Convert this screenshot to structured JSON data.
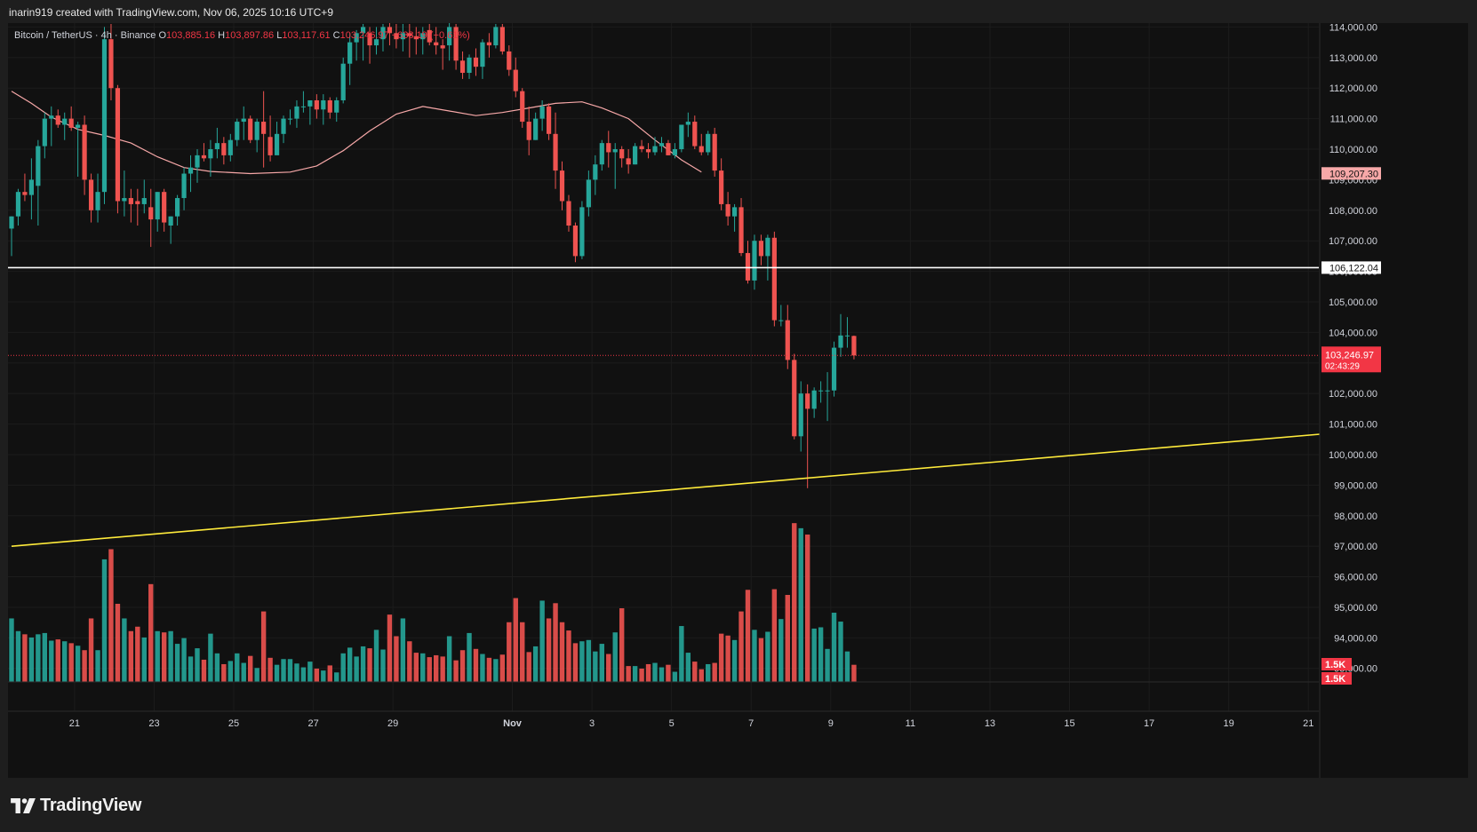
{
  "header": {
    "author_line": "inarin919 created with TradingView.com, Nov 06, 2025 10:16 UTC+9"
  },
  "legend": {
    "symbol": "Bitcoin / TetherUS · 4h · Binance",
    "o_label": "O",
    "o_value": "103,885.16",
    "h_label": "H",
    "h_value": "103,897.86",
    "l_label": "L",
    "l_value": "103,117.61",
    "c_label": "C",
    "c_value": "103,246.97",
    "change": "−638.19 (−0.61%)"
  },
  "footer": {
    "logo_text": "TradingView"
  },
  "colors": {
    "up": "#26a69a",
    "down": "#ef5350",
    "ma": "#f7a8a8",
    "support_line": "#ffeb3b",
    "resistance_line": "#ffffff",
    "background": "#111111",
    "grid": "#1c1c1c"
  },
  "chart_data": {
    "type": "candlestick",
    "timeframe": "4h",
    "price_axis": {
      "ylim": [
        92530,
        114030
      ],
      "ticks": [
        "93,000.00",
        "94,000.00",
        "95,000.00",
        "96,000.00",
        "97,000.00",
        "98,000.00",
        "99,000.00",
        "100,000.00",
        "101,000.00",
        "102,000.00",
        "103,000.00",
        "104,000.00",
        "105,000.00",
        "106,000.00",
        "107,000.00",
        "108,000.00",
        "109,000.00",
        "110,000.00",
        "111,000.00",
        "112,000.00",
        "113,000.00",
        "114,000.00"
      ]
    },
    "time_axis": {
      "labels": [
        {
          "label": "21",
          "idx": 9.5
        },
        {
          "label": "23",
          "idx": 21.5
        },
        {
          "label": "25",
          "idx": 33.5
        },
        {
          "label": "27",
          "idx": 45.5
        },
        {
          "label": "29",
          "idx": 57.5
        },
        {
          "label": "Nov",
          "idx": 75.5
        },
        {
          "label": "3",
          "idx": 87.5
        },
        {
          "label": "5",
          "idx": 99.5
        },
        {
          "label": "7",
          "idx": 111.5
        },
        {
          "label": "9",
          "idx": 123.5
        },
        {
          "label": "11",
          "idx": 135.5
        },
        {
          "label": "13",
          "idx": 147.5
        },
        {
          "label": "15",
          "idx": 159.5
        },
        {
          "label": "17",
          "idx": 171.5
        },
        {
          "label": "19",
          "idx": 183.5
        },
        {
          "label": "21",
          "idx": 195.5
        }
      ]
    },
    "price_labels": [
      {
        "value": 109207.3,
        "text": "109,207.30",
        "style": "ma"
      },
      {
        "value": 106122.04,
        "text": "106,122.04",
        "style": "line"
      },
      {
        "value": 103246.97,
        "text": "103,246.97",
        "subtext": "02:43:29",
        "style": "last"
      }
    ],
    "volume_labels": [
      "1.5K",
      "1.5K"
    ],
    "horizontal_line": 106122.04,
    "last_price": 103246.97,
    "trendline": {
      "from": {
        "idx": 0,
        "price": 97000
      },
      "to": {
        "idx": 199,
        "price": 100700
      }
    },
    "ma_series": [
      {
        "idx": 0,
        "v": 111900
      },
      {
        "idx": 3,
        "v": 111500
      },
      {
        "idx": 6,
        "v": 111050
      },
      {
        "idx": 10,
        "v": 110650
      },
      {
        "idx": 14,
        "v": 110450
      },
      {
        "idx": 18,
        "v": 110200
      },
      {
        "idx": 22,
        "v": 109750
      },
      {
        "idx": 26,
        "v": 109400
      },
      {
        "idx": 30,
        "v": 109270
      },
      {
        "idx": 36,
        "v": 109200
      },
      {
        "idx": 42,
        "v": 109250
      },
      {
        "idx": 46,
        "v": 109450
      },
      {
        "idx": 50,
        "v": 109950
      },
      {
        "idx": 54,
        "v": 110600
      },
      {
        "idx": 58,
        "v": 111150
      },
      {
        "idx": 62,
        "v": 111400
      },
      {
        "idx": 66,
        "v": 111250
      },
      {
        "idx": 70,
        "v": 111100
      },
      {
        "idx": 74,
        "v": 111200
      },
      {
        "idx": 78,
        "v": 111350
      },
      {
        "idx": 82,
        "v": 111500
      },
      {
        "idx": 86,
        "v": 111550
      },
      {
        "idx": 89,
        "v": 111350
      },
      {
        "idx": 93,
        "v": 111000
      },
      {
        "idx": 97,
        "v": 110300
      },
      {
        "idx": 101,
        "v": 109650
      },
      {
        "idx": 104,
        "v": 109250
      }
    ],
    "volume_max": 2600,
    "candles": [
      {
        "o": 107400,
        "h": 107800,
        "l": 106500,
        "c": 107800,
        "v": 1000
      },
      {
        "o": 107800,
        "h": 108700,
        "l": 107500,
        "c": 108600,
        "v": 800
      },
      {
        "o": 108600,
        "h": 109200,
        "l": 108300,
        "c": 108500,
        "v": 750
      },
      {
        "o": 108500,
        "h": 109700,
        "l": 107700,
        "c": 109000,
        "v": 700
      },
      {
        "o": 108800,
        "h": 110300,
        "l": 107500,
        "c": 110100,
        "v": 750
      },
      {
        "o": 110100,
        "h": 111200,
        "l": 109700,
        "c": 111000,
        "v": 770
      },
      {
        "o": 111000,
        "h": 111400,
        "l": 110100,
        "c": 111100,
        "v": 650
      },
      {
        "o": 111100,
        "h": 111300,
        "l": 110700,
        "c": 110800,
        "v": 670
      },
      {
        "o": 110800,
        "h": 111200,
        "l": 110300,
        "c": 111000,
        "v": 640
      },
      {
        "o": 111000,
        "h": 111400,
        "l": 110600,
        "c": 110700,
        "v": 610
      },
      {
        "o": 110700,
        "h": 110900,
        "l": 109100,
        "c": 110800,
        "v": 570
      },
      {
        "o": 110800,
        "h": 111100,
        "l": 108500,
        "c": 109000,
        "v": 500
      },
      {
        "o": 109000,
        "h": 109200,
        "l": 107600,
        "c": 108000,
        "v": 1000
      },
      {
        "o": 108000,
        "h": 109200,
        "l": 107600,
        "c": 108600,
        "v": 500
      },
      {
        "o": 108600,
        "h": 114000,
        "l": 108200,
        "c": 113600,
        "v": 1930
      },
      {
        "o": 113600,
        "h": 114100,
        "l": 111600,
        "c": 112000,
        "v": 2090
      },
      {
        "o": 112000,
        "h": 112100,
        "l": 107900,
        "c": 108300,
        "v": 1230
      },
      {
        "o": 108300,
        "h": 109300,
        "l": 107800,
        "c": 108400,
        "v": 1000
      },
      {
        "o": 108400,
        "h": 108700,
        "l": 107600,
        "c": 108200,
        "v": 800
      },
      {
        "o": 108300,
        "h": 108700,
        "l": 107500,
        "c": 108200,
        "v": 870
      },
      {
        "o": 108200,
        "h": 109000,
        "l": 107900,
        "c": 108400,
        "v": 700
      },
      {
        "o": 108100,
        "h": 108700,
        "l": 106800,
        "c": 107700,
        "v": 1540
      },
      {
        "o": 107700,
        "h": 108600,
        "l": 107300,
        "c": 108600,
        "v": 800
      },
      {
        "o": 108600,
        "h": 108700,
        "l": 107300,
        "c": 107600,
        "v": 780
      },
      {
        "o": 107500,
        "h": 107800,
        "l": 106900,
        "c": 107800,
        "v": 800
      },
      {
        "o": 107800,
        "h": 108500,
        "l": 107500,
        "c": 108400,
        "v": 600
      },
      {
        "o": 108400,
        "h": 109400,
        "l": 108000,
        "c": 109200,
        "v": 690
      },
      {
        "o": 109200,
        "h": 109800,
        "l": 108600,
        "c": 109400,
        "v": 400
      },
      {
        "o": 109400,
        "h": 110000,
        "l": 108900,
        "c": 109800,
        "v": 530
      },
      {
        "o": 109800,
        "h": 110200,
        "l": 109600,
        "c": 109700,
        "v": 350
      },
      {
        "o": 109700,
        "h": 110300,
        "l": 109100,
        "c": 110000,
        "v": 760
      },
      {
        "o": 110000,
        "h": 110700,
        "l": 109700,
        "c": 110200,
        "v": 450
      },
      {
        "o": 110200,
        "h": 110400,
        "l": 109500,
        "c": 109800,
        "v": 280
      },
      {
        "o": 109800,
        "h": 110500,
        "l": 109600,
        "c": 110300,
        "v": 330
      },
      {
        "o": 110300,
        "h": 111000,
        "l": 110100,
        "c": 110900,
        "v": 450
      },
      {
        "o": 110900,
        "h": 111400,
        "l": 110300,
        "c": 111000,
        "v": 300
      },
      {
        "o": 111000,
        "h": 111100,
        "l": 110200,
        "c": 110300,
        "v": 410
      },
      {
        "o": 110300,
        "h": 111000,
        "l": 109900,
        "c": 110900,
        "v": 220
      },
      {
        "o": 110900,
        "h": 111900,
        "l": 109400,
        "c": 110500,
        "v": 1110
      },
      {
        "o": 110400,
        "h": 111100,
        "l": 109600,
        "c": 109800,
        "v": 380
      },
      {
        "o": 109800,
        "h": 110900,
        "l": 109900,
        "c": 110500,
        "v": 270
      },
      {
        "o": 110500,
        "h": 111100,
        "l": 110200,
        "c": 111000,
        "v": 360
      },
      {
        "o": 111000,
        "h": 111300,
        "l": 110800,
        "c": 111000,
        "v": 360
      },
      {
        "o": 111000,
        "h": 111600,
        "l": 110700,
        "c": 111400,
        "v": 290
      },
      {
        "o": 111400,
        "h": 111900,
        "l": 111200,
        "c": 111400,
        "v": 230
      },
      {
        "o": 111400,
        "h": 111600,
        "l": 110800,
        "c": 111600,
        "v": 320
      },
      {
        "o": 111600,
        "h": 111800,
        "l": 111000,
        "c": 111300,
        "v": 210
      },
      {
        "o": 111300,
        "h": 111800,
        "l": 110800,
        "c": 111600,
        "v": 180
      },
      {
        "o": 111600,
        "h": 111700,
        "l": 111000,
        "c": 111200,
        "v": 260
      },
      {
        "o": 111200,
        "h": 111700,
        "l": 110900,
        "c": 111600,
        "v": 150
      },
      {
        "o": 111600,
        "h": 113000,
        "l": 111500,
        "c": 112800,
        "v": 450
      },
      {
        "o": 112800,
        "h": 113800,
        "l": 112100,
        "c": 113500,
        "v": 540
      },
      {
        "o": 113500,
        "h": 113900,
        "l": 112900,
        "c": 113800,
        "v": 400
      },
      {
        "o": 113800,
        "h": 114100,
        "l": 112900,
        "c": 114000,
        "v": 560
      },
      {
        "o": 113800,
        "h": 114000,
        "l": 112800,
        "c": 113400,
        "v": 530
      },
      {
        "o": 113400,
        "h": 114000,
        "l": 113100,
        "c": 113600,
        "v": 820
      },
      {
        "o": 113600,
        "h": 114100,
        "l": 113200,
        "c": 114000,
        "v": 510
      },
      {
        "o": 114000,
        "h": 114200,
        "l": 113400,
        "c": 113800,
        "v": 1060
      },
      {
        "o": 113800,
        "h": 114100,
        "l": 113300,
        "c": 113600,
        "v": 720
      },
      {
        "o": 113600,
        "h": 114100,
        "l": 113200,
        "c": 113800,
        "v": 1000
      },
      {
        "o": 113800,
        "h": 114100,
        "l": 113000,
        "c": 113700,
        "v": 640
      },
      {
        "o": 113700,
        "h": 114000,
        "l": 113100,
        "c": 113600,
        "v": 460
      },
      {
        "o": 113600,
        "h": 114000,
        "l": 113100,
        "c": 113800,
        "v": 450
      },
      {
        "o": 113900,
        "h": 114100,
        "l": 113400,
        "c": 113500,
        "v": 390
      },
      {
        "o": 113500,
        "h": 114000,
        "l": 113100,
        "c": 113400,
        "v": 420
      },
      {
        "o": 113400,
        "h": 113600,
        "l": 112600,
        "c": 113300,
        "v": 400
      },
      {
        "o": 113400,
        "h": 114300,
        "l": 112900,
        "c": 114000,
        "v": 720
      },
      {
        "o": 114000,
        "h": 114100,
        "l": 112600,
        "c": 112900,
        "v": 340
      },
      {
        "o": 112900,
        "h": 113200,
        "l": 112300,
        "c": 112500,
        "v": 500
      },
      {
        "o": 112500,
        "h": 113100,
        "l": 112300,
        "c": 113000,
        "v": 770
      },
      {
        "o": 113000,
        "h": 113300,
        "l": 112400,
        "c": 112700,
        "v": 520
      },
      {
        "o": 112700,
        "h": 113600,
        "l": 112300,
        "c": 113500,
        "v": 440
      },
      {
        "o": 113500,
        "h": 113800,
        "l": 113000,
        "c": 113400,
        "v": 380
      },
      {
        "o": 113400,
        "h": 114100,
        "l": 113300,
        "c": 114000,
        "v": 360
      },
      {
        "o": 114000,
        "h": 114100,
        "l": 113100,
        "c": 113200,
        "v": 430
      },
      {
        "o": 113200,
        "h": 113400,
        "l": 112400,
        "c": 112600,
        "v": 940
      },
      {
        "o": 112600,
        "h": 113000,
        "l": 111700,
        "c": 111900,
        "v": 1320
      },
      {
        "o": 111900,
        "h": 112000,
        "l": 110700,
        "c": 110900,
        "v": 940
      },
      {
        "o": 110900,
        "h": 111400,
        "l": 109800,
        "c": 110300,
        "v": 470
      },
      {
        "o": 110300,
        "h": 111200,
        "l": 110300,
        "c": 111000,
        "v": 560
      },
      {
        "o": 111000,
        "h": 111600,
        "l": 110600,
        "c": 111400,
        "v": 1280
      },
      {
        "o": 111400,
        "h": 111500,
        "l": 110300,
        "c": 110500,
        "v": 1000
      },
      {
        "o": 110500,
        "h": 111200,
        "l": 108700,
        "c": 109300,
        "v": 1240
      },
      {
        "o": 109300,
        "h": 109600,
        "l": 108000,
        "c": 108300,
        "v": 940
      },
      {
        "o": 108300,
        "h": 108500,
        "l": 107300,
        "c": 107500,
        "v": 810
      },
      {
        "o": 107500,
        "h": 107600,
        "l": 106300,
        "c": 106500,
        "v": 610
      },
      {
        "o": 106500,
        "h": 108300,
        "l": 106400,
        "c": 108100,
        "v": 640
      },
      {
        "o": 108100,
        "h": 109300,
        "l": 107800,
        "c": 109000,
        "v": 660
      },
      {
        "o": 109000,
        "h": 109800,
        "l": 108500,
        "c": 109500,
        "v": 480
      },
      {
        "o": 109500,
        "h": 110300,
        "l": 109300,
        "c": 110200,
        "v": 600
      },
      {
        "o": 110200,
        "h": 110600,
        "l": 109400,
        "c": 109900,
        "v": 440
      },
      {
        "o": 109900,
        "h": 110200,
        "l": 108700,
        "c": 110000,
        "v": 780
      },
      {
        "o": 110000,
        "h": 110100,
        "l": 109400,
        "c": 109700,
        "v": 1160
      },
      {
        "o": 109700,
        "h": 110000,
        "l": 109200,
        "c": 109500,
        "v": 250
      },
      {
        "o": 109500,
        "h": 110200,
        "l": 109500,
        "c": 110100,
        "v": 250
      },
      {
        "o": 110100,
        "h": 110300,
        "l": 109900,
        "c": 110000,
        "v": 210
      },
      {
        "o": 110000,
        "h": 110200,
        "l": 109700,
        "c": 109900,
        "v": 280
      },
      {
        "o": 109900,
        "h": 110400,
        "l": 109800,
        "c": 110100,
        "v": 300
      },
      {
        "o": 110100,
        "h": 110400,
        "l": 109900,
        "c": 110200,
        "v": 230
      },
      {
        "o": 110200,
        "h": 110300,
        "l": 109800,
        "c": 109800,
        "v": 270
      },
      {
        "o": 109800,
        "h": 110200,
        "l": 109700,
        "c": 110000,
        "v": 160
      },
      {
        "o": 110000,
        "h": 110800,
        "l": 109900,
        "c": 110800,
        "v": 880
      },
      {
        "o": 110800,
        "h": 111200,
        "l": 110400,
        "c": 110900,
        "v": 460
      },
      {
        "o": 110900,
        "h": 111100,
        "l": 110000,
        "c": 110100,
        "v": 320
      },
      {
        "o": 110100,
        "h": 110500,
        "l": 109800,
        "c": 109900,
        "v": 200
      },
      {
        "o": 109900,
        "h": 110600,
        "l": 109800,
        "c": 110500,
        "v": 280
      },
      {
        "o": 110500,
        "h": 110700,
        "l": 109100,
        "c": 109300,
        "v": 300
      },
      {
        "o": 109300,
        "h": 109700,
        "l": 108000,
        "c": 108200,
        "v": 760
      },
      {
        "o": 108200,
        "h": 108600,
        "l": 107500,
        "c": 107800,
        "v": 730
      },
      {
        "o": 107800,
        "h": 108200,
        "l": 107300,
        "c": 108100,
        "v": 660
      },
      {
        "o": 108100,
        "h": 108400,
        "l": 106500,
        "c": 106600,
        "v": 1110
      },
      {
        "o": 106600,
        "h": 107000,
        "l": 105600,
        "c": 105700,
        "v": 1450
      },
      {
        "o": 105700,
        "h": 107200,
        "l": 105400,
        "c": 107000,
        "v": 820
      },
      {
        "o": 107000,
        "h": 107200,
        "l": 106200,
        "c": 106500,
        "v": 690
      },
      {
        "o": 106500,
        "h": 107200,
        "l": 105700,
        "c": 107100,
        "v": 790
      },
      {
        "o": 107100,
        "h": 107300,
        "l": 104200,
        "c": 104400,
        "v": 1460
      },
      {
        "o": 104400,
        "h": 104900,
        "l": 104200,
        "c": 104400,
        "v": 990
      },
      {
        "o": 104400,
        "h": 104900,
        "l": 102800,
        "c": 103100,
        "v": 1370
      },
      {
        "o": 103100,
        "h": 103300,
        "l": 100500,
        "c": 100600,
        "v": 2500
      },
      {
        "o": 100600,
        "h": 102400,
        "l": 100100,
        "c": 102000,
        "v": 2420
      },
      {
        "o": 102000,
        "h": 102300,
        "l": 98900,
        "c": 101500,
        "v": 2320
      },
      {
        "o": 101500,
        "h": 102200,
        "l": 101200,
        "c": 102100,
        "v": 840
      },
      {
        "o": 102100,
        "h": 102400,
        "l": 101700,
        "c": 102100,
        "v": 860
      },
      {
        "o": 102100,
        "h": 102700,
        "l": 101100,
        "c": 102100,
        "v": 520
      },
      {
        "o": 102100,
        "h": 103700,
        "l": 101900,
        "c": 103500,
        "v": 1090
      },
      {
        "o": 103500,
        "h": 104600,
        "l": 103200,
        "c": 103900,
        "v": 950
      },
      {
        "o": 103900,
        "h": 104500,
        "l": 103500,
        "c": 103900,
        "v": 480
      },
      {
        "o": 103885,
        "h": 103898,
        "l": 103118,
        "c": 103247,
        "v": 270
      }
    ]
  }
}
